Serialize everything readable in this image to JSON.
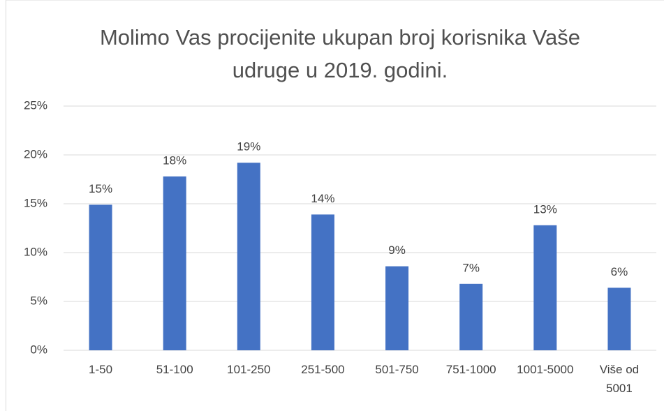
{
  "chart_data": {
    "type": "bar",
    "title": "Molimo Vas procijenite ukupan broj korisnika Vaše udruge u 2019. godini.",
    "categories": [
      "1-50",
      "51-100",
      "101-250",
      "251-500",
      "501-750",
      "751-1000",
      "1001-5000",
      "Više od 5001"
    ],
    "values": [
      14.9,
      17.8,
      19.2,
      13.9,
      8.6,
      6.8,
      12.8,
      6.4
    ],
    "value_labels": [
      "15%",
      "18%",
      "19%",
      "14%",
      "9%",
      "7%",
      "13%",
      "6%"
    ],
    "color": "#4472c4",
    "ylim": [
      0,
      25
    ],
    "yticks": [
      {
        "value": 0,
        "label": "0%"
      },
      {
        "value": 5,
        "label": "5%"
      },
      {
        "value": 10,
        "label": "10%"
      },
      {
        "value": 15,
        "label": "15%"
      },
      {
        "value": 20,
        "label": "20%"
      },
      {
        "value": 25,
        "label": "25%"
      }
    ],
    "grid": true
  }
}
